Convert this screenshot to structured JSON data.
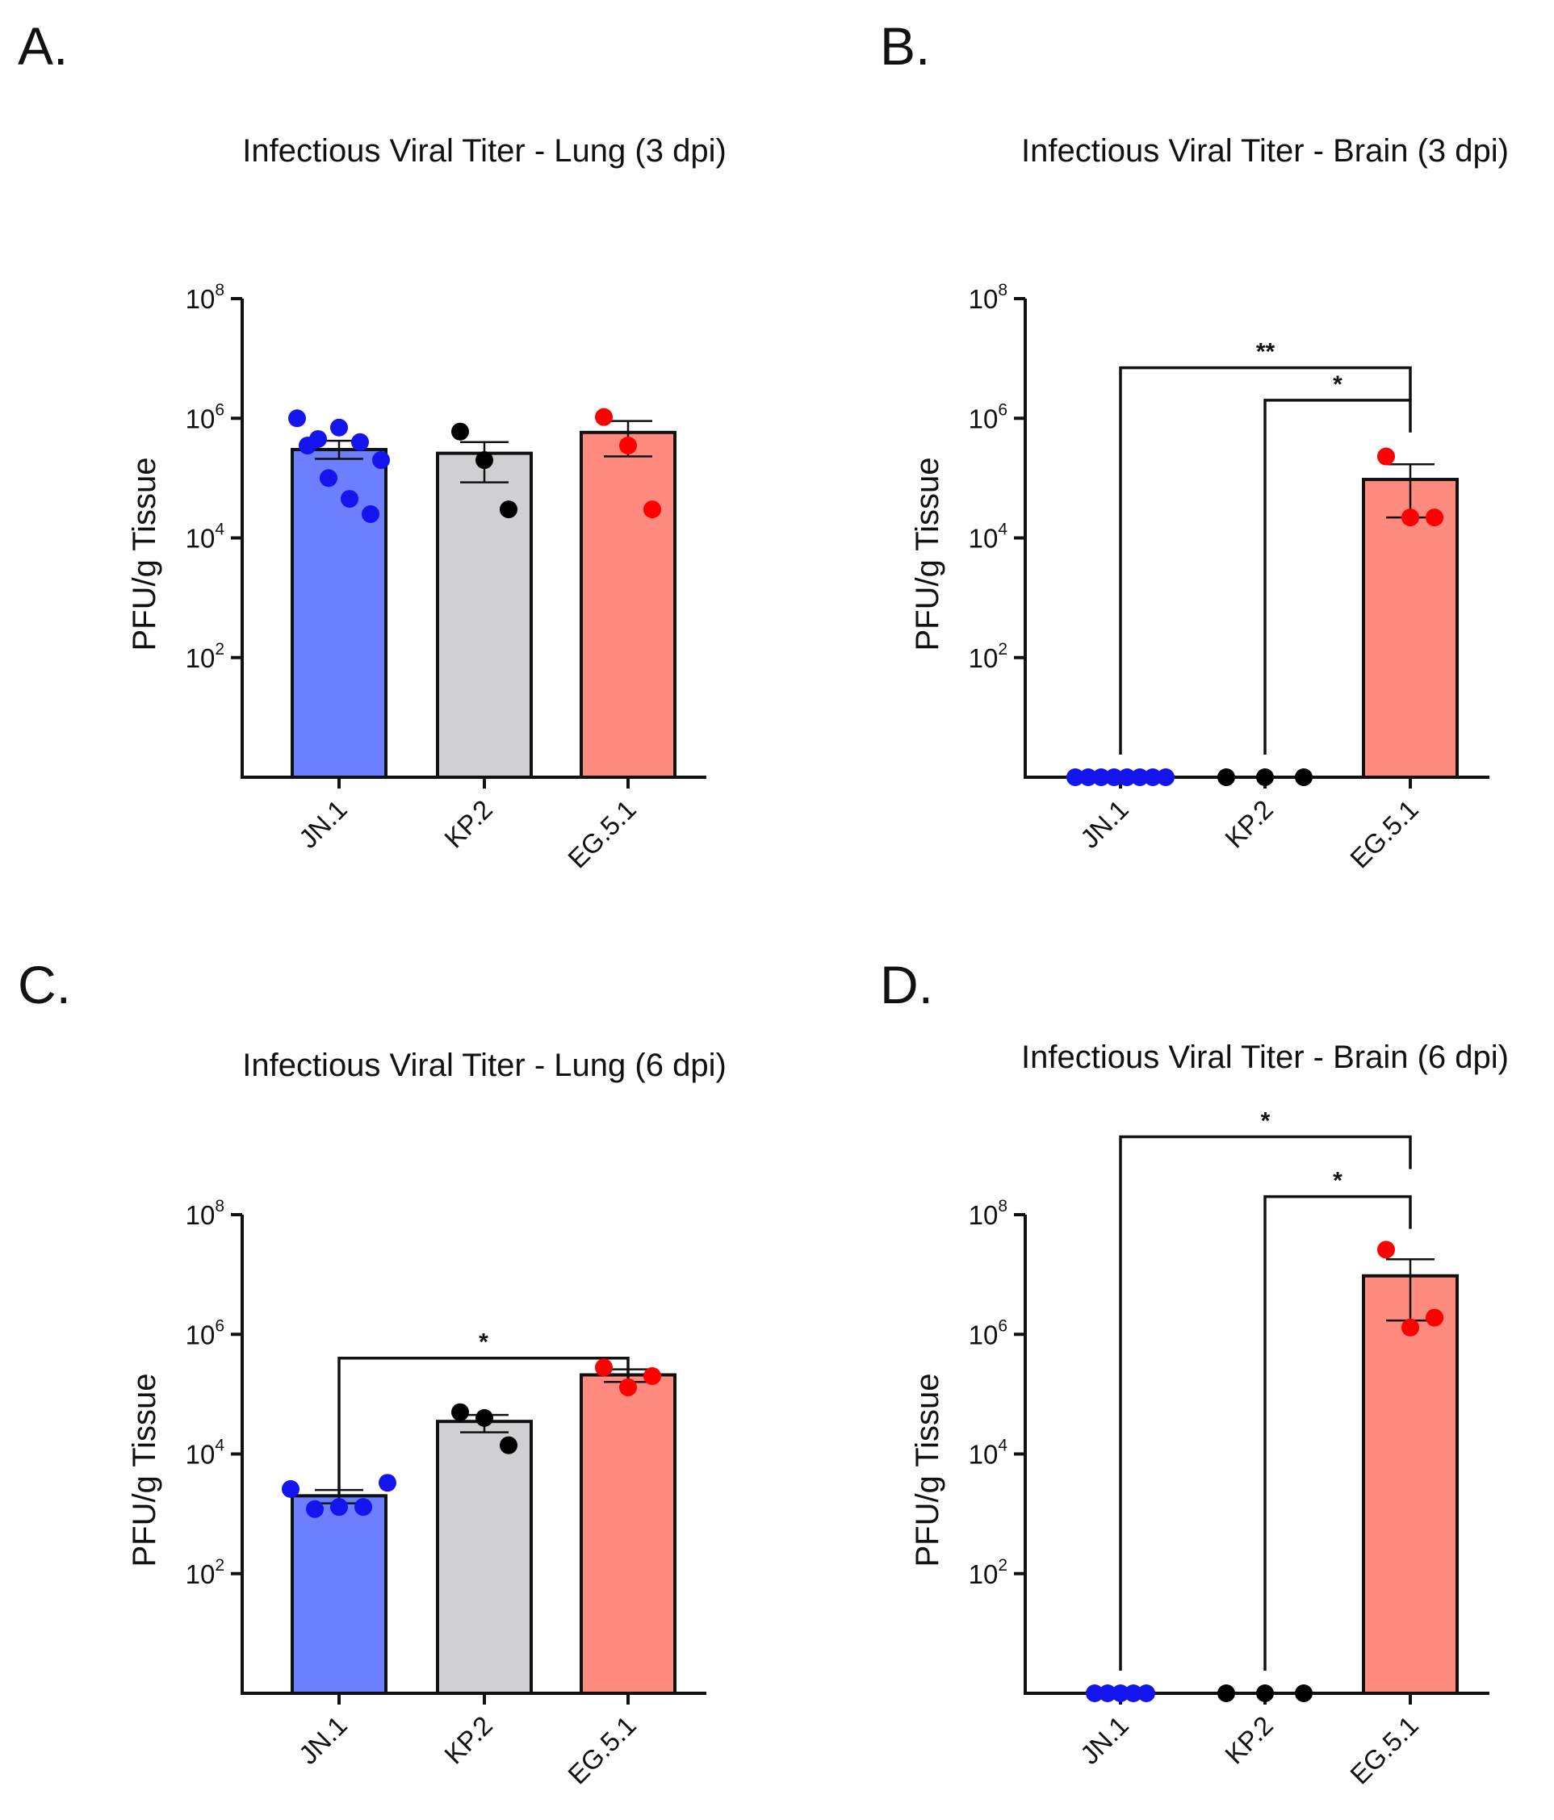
{
  "figure": {
    "panels": [
      {
        "letter": "A.",
        "title": "Infectious Viral Titer - Lung (3 dpi)"
      },
      {
        "letter": "B.",
        "title": "Infectious Viral Titer - Brain (3 dpi)"
      },
      {
        "letter": "C.",
        "title": "Infectious Viral Titer - Lung (6 dpi)"
      },
      {
        "letter": "D.",
        "title": "Infectious Viral Titer - Brain (6 dpi)"
      }
    ]
  },
  "colors": {
    "JN.1": {
      "bar": "#6b7fff",
      "point": "#1414ee"
    },
    "KP.2": {
      "bar": "#d0d0d2",
      "point": "#000000"
    },
    "EG.5.1": {
      "bar": "#ff8a7e",
      "point": "#ff0000"
    }
  },
  "chart_data": [
    {
      "panel": "A.",
      "type": "bar",
      "title": "Infectious Viral Titer - Lung (3 dpi)",
      "ylabel": "PFU/g Tissue",
      "yscale": "log10",
      "ylim": [
        1,
        100000000
      ],
      "yticks": [
        {
          "base": "10",
          "exp": "2"
        },
        {
          "base": "10",
          "exp": "4"
        },
        {
          "base": "10",
          "exp": "6"
        },
        {
          "base": "10",
          "exp": "8"
        }
      ],
      "categories": [
        "JN.1",
        "KP.2",
        "EG.5.1"
      ],
      "bars": [
        {
          "category": "JN.1",
          "mean": 300000,
          "sem_low": 210000,
          "sem_high": 420000,
          "points": [
            1000000,
            450000,
            700000,
            400000,
            200000,
            350000,
            100000,
            45000,
            25000
          ]
        },
        {
          "category": "KP.2",
          "mean": 260000,
          "sem_low": 85000,
          "sem_high": 400000,
          "points": [
            600000,
            200000,
            30000
          ]
        },
        {
          "category": "EG.5.1",
          "mean": 580000,
          "sem_low": 230000,
          "sem_high": 900000,
          "points": [
            1050000,
            350000,
            30000
          ]
        }
      ],
      "significance": []
    },
    {
      "panel": "B.",
      "type": "bar",
      "title": "Infectious Viral Titer - Brain (3 dpi)",
      "ylabel": "PFU/g Tissue",
      "yscale": "log10",
      "ylim": [
        1,
        100000000
      ],
      "yticks": [
        {
          "base": "10",
          "exp": "2"
        },
        {
          "base": "10",
          "exp": "4"
        },
        {
          "base": "10",
          "exp": "6"
        },
        {
          "base": "10",
          "exp": "8"
        }
      ],
      "categories": [
        "JN.1",
        "KP.2",
        "EG.5.1"
      ],
      "bars": [
        {
          "category": "JN.1",
          "mean": 1,
          "sem_low": 1,
          "sem_high": 1,
          "points": [
            1,
            1,
            1,
            1,
            1,
            1,
            1,
            1
          ]
        },
        {
          "category": "KP.2",
          "mean": 1,
          "sem_low": 1,
          "sem_high": 1,
          "points": [
            1,
            1,
            1
          ]
        },
        {
          "category": "EG.5.1",
          "mean": 95000,
          "sem_low": 22000,
          "sem_high": 170000,
          "points": [
            230000,
            22000,
            22000
          ]
        }
      ],
      "significance": [
        {
          "from": "JN.1",
          "to": "EG.5.1",
          "label": "**",
          "level": 7000000
        },
        {
          "from": "KP.2",
          "to": "EG.5.1",
          "label": "*",
          "level": 2000000
        }
      ]
    },
    {
      "panel": "C.",
      "type": "bar",
      "title": "Infectious Viral Titer - Lung (6 dpi)",
      "ylabel": "PFU/g Tissue",
      "yscale": "log10",
      "ylim": [
        1,
        100000000
      ],
      "yticks": [
        {
          "base": "10",
          "exp": "2"
        },
        {
          "base": "10",
          "exp": "4"
        },
        {
          "base": "10",
          "exp": "6"
        },
        {
          "base": "10",
          "exp": "8"
        }
      ],
      "categories": [
        "JN.1",
        "KP.2",
        "EG.5.1"
      ],
      "bars": [
        {
          "category": "JN.1",
          "mean": 2000,
          "sem_low": 1500,
          "sem_high": 2500,
          "points": [
            2600,
            1200,
            1300,
            1300,
            3300
          ]
        },
        {
          "category": "KP.2",
          "mean": 35000,
          "sem_low": 23000,
          "sem_high": 45000,
          "points": [
            50000,
            40000,
            14000
          ]
        },
        {
          "category": "EG.5.1",
          "mean": 210000,
          "sem_low": 160000,
          "sem_high": 260000,
          "points": [
            280000,
            130000,
            200000
          ]
        }
      ],
      "significance": [
        {
          "from": "JN.1",
          "to": "EG.5.1",
          "label": "*",
          "level": 400000
        }
      ]
    },
    {
      "panel": "D.",
      "type": "bar",
      "title": "Infectious Viral Titer - Brain (6 dpi)",
      "ylabel": "PFU/g Tissue",
      "yscale": "log10",
      "ylim": [
        1,
        100000000
      ],
      "yticks": [
        {
          "base": "10",
          "exp": "2"
        },
        {
          "base": "10",
          "exp": "4"
        },
        {
          "base": "10",
          "exp": "6"
        },
        {
          "base": "10",
          "exp": "8"
        }
      ],
      "categories": [
        "JN.1",
        "KP.2",
        "EG.5.1"
      ],
      "bars": [
        {
          "category": "JN.1",
          "mean": 1,
          "sem_low": 1,
          "sem_high": 1,
          "points": [
            1,
            1,
            1,
            1,
            1
          ]
        },
        {
          "category": "KP.2",
          "mean": 1,
          "sem_low": 1,
          "sem_high": 1,
          "points": [
            1,
            1,
            1
          ]
        },
        {
          "category": "EG.5.1",
          "mean": 9500000,
          "sem_low": 1700000,
          "sem_high": 18000000,
          "points": [
            26000000,
            1300000,
            1900000
          ]
        }
      ],
      "significance": [
        {
          "from": "JN.1",
          "to": "EG.5.1",
          "label": "*",
          "level": 2000000000
        },
        {
          "from": "KP.2",
          "to": "EG.5.1",
          "label": "*",
          "level": 200000000
        }
      ]
    }
  ]
}
